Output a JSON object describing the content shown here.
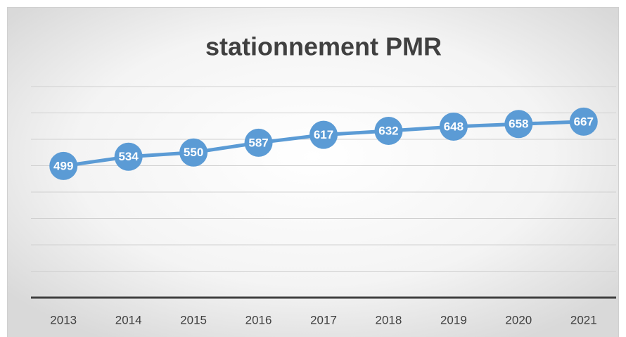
{
  "chart_data": {
    "type": "line",
    "title": "stationnement PMR",
    "categories": [
      "2013",
      "2014",
      "2015",
      "2016",
      "2017",
      "2018",
      "2019",
      "2020",
      "2021"
    ],
    "series": [
      {
        "name": "stationnement PMR",
        "color": "#5b9bd5",
        "values": [
          499,
          534,
          550,
          587,
          617,
          632,
          648,
          658,
          667
        ]
      }
    ],
    "ylim": [
      0,
      800
    ],
    "yticks": [
      0,
      100,
      200,
      300,
      400,
      500,
      600,
      700,
      800
    ],
    "grid": true
  }
}
